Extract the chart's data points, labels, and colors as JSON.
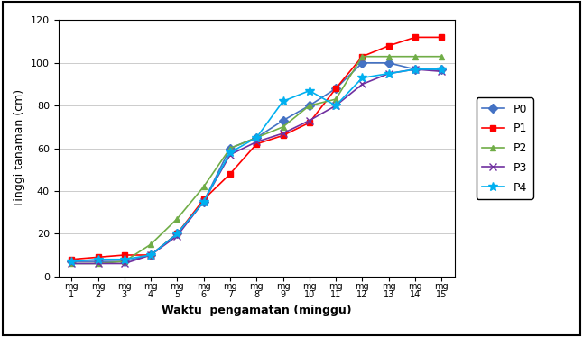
{
  "x": [
    1,
    2,
    3,
    4,
    5,
    6,
    7,
    8,
    9,
    10,
    11,
    12,
    13,
    14,
    15
  ],
  "series": {
    "P0": [
      7,
      7,
      7,
      10,
      20,
      35,
      60,
      65,
      73,
      80,
      88,
      100,
      100,
      97,
      97
    ],
    "P1": [
      8,
      9,
      10,
      10,
      20,
      36,
      48,
      62,
      66,
      72,
      88,
      103,
      108,
      112,
      112
    ],
    "P2": [
      6,
      6,
      7,
      15,
      27,
      42,
      60,
      65,
      70,
      80,
      83,
      103,
      103,
      103,
      103
    ],
    "P3": [
      6,
      6,
      6,
      10,
      19,
      35,
      57,
      63,
      67,
      73,
      80,
      90,
      95,
      97,
      96
    ],
    "P4": [
      7,
      8,
      8,
      10,
      20,
      35,
      58,
      65,
      82,
      87,
      80,
      93,
      95,
      97,
      97
    ]
  },
  "colors": {
    "P0": "#4472C4",
    "P1": "#FF0000",
    "P2": "#70AD47",
    "P3": "#7030A0",
    "P4": "#00B0F0"
  },
  "markers": {
    "P0": "D",
    "P1": "s",
    "P2": "^",
    "P3": "x",
    "P4": "*"
  },
  "xlabel": "Waktu  pengamatan (minggu)",
  "ylabel": "Tinggi tanaman (cm)",
  "ylim": [
    0,
    120
  ],
  "yticks": [
    0,
    20,
    40,
    60,
    80,
    100,
    120
  ],
  "xlim": [
    0.5,
    15.5
  ],
  "outer_border": true,
  "legend_entries": [
    "P0",
    "P1",
    "P2",
    "P3",
    "P4"
  ]
}
